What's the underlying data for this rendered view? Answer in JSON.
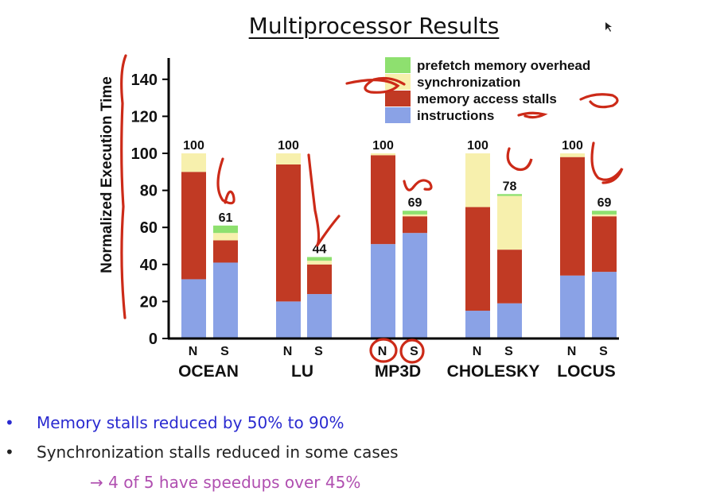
{
  "slide": {
    "title": "Multiprocessor Results",
    "bullets": [
      {
        "marker": "•",
        "text": "Memory stalls reduced by 50% to 90%",
        "color": "#2a2ad0"
      },
      {
        "marker": "•",
        "text": "Synchronization stalls reduced in some cases",
        "color": "#222222"
      },
      {
        "marker": "→",
        "text": "4 of 5 have speedups over 45%",
        "color": "#b04fb0"
      }
    ]
  },
  "chart_data": {
    "type": "bar",
    "stacked": true,
    "title": "",
    "xlabel": "",
    "ylabel": "Normalized Execution Time",
    "ylim": [
      0,
      150
    ],
    "yticks": [
      0,
      20,
      40,
      60,
      80,
      100,
      120,
      140
    ],
    "grid": false,
    "legend_position": "top-right",
    "groups": [
      "OCEAN",
      "LU",
      "MP3D",
      "CHOLESKY",
      "LOCUS"
    ],
    "bar_labels": [
      "N",
      "S"
    ],
    "series": [
      {
        "name": "instructions",
        "color": "#8aa2e6"
      },
      {
        "name": "memory access stalls",
        "color": "#c13a24"
      },
      {
        "name": "synchronization",
        "color": "#f7f0ad"
      },
      {
        "name": "prefetch memory overhead",
        "color": "#8ee06f"
      }
    ],
    "legend_order": [
      "prefetch memory overhead",
      "synchronization",
      "memory access stalls",
      "instructions"
    ],
    "bars": [
      {
        "group": "OCEAN",
        "label": "N",
        "total": "100",
        "values": [
          32,
          58,
          10,
          0
        ]
      },
      {
        "group": "OCEAN",
        "label": "S",
        "total": "61",
        "values": [
          41,
          12,
          4,
          4
        ]
      },
      {
        "group": "LU",
        "label": "N",
        "total": "100",
        "values": [
          20,
          74,
          6,
          0
        ]
      },
      {
        "group": "LU",
        "label": "S",
        "total": "44",
        "values": [
          24,
          16,
          2,
          2
        ]
      },
      {
        "group": "MP3D",
        "label": "N",
        "total": "100",
        "values": [
          51,
          48,
          1,
          0
        ]
      },
      {
        "group": "MP3D",
        "label": "S",
        "total": "69",
        "values": [
          57,
          9,
          1,
          2
        ]
      },
      {
        "group": "CHOLESKY",
        "label": "N",
        "total": "100",
        "values": [
          15,
          56,
          29,
          0
        ]
      },
      {
        "group": "CHOLESKY",
        "label": "S",
        "total": "78",
        "values": [
          19,
          29,
          29,
          1
        ]
      },
      {
        "group": "LOCUS",
        "label": "N",
        "total": "100",
        "values": [
          34,
          64,
          2,
          0
        ]
      },
      {
        "group": "LOCUS",
        "label": "S",
        "total": "69",
        "values": [
          36,
          30,
          1,
          2
        ]
      }
    ]
  }
}
